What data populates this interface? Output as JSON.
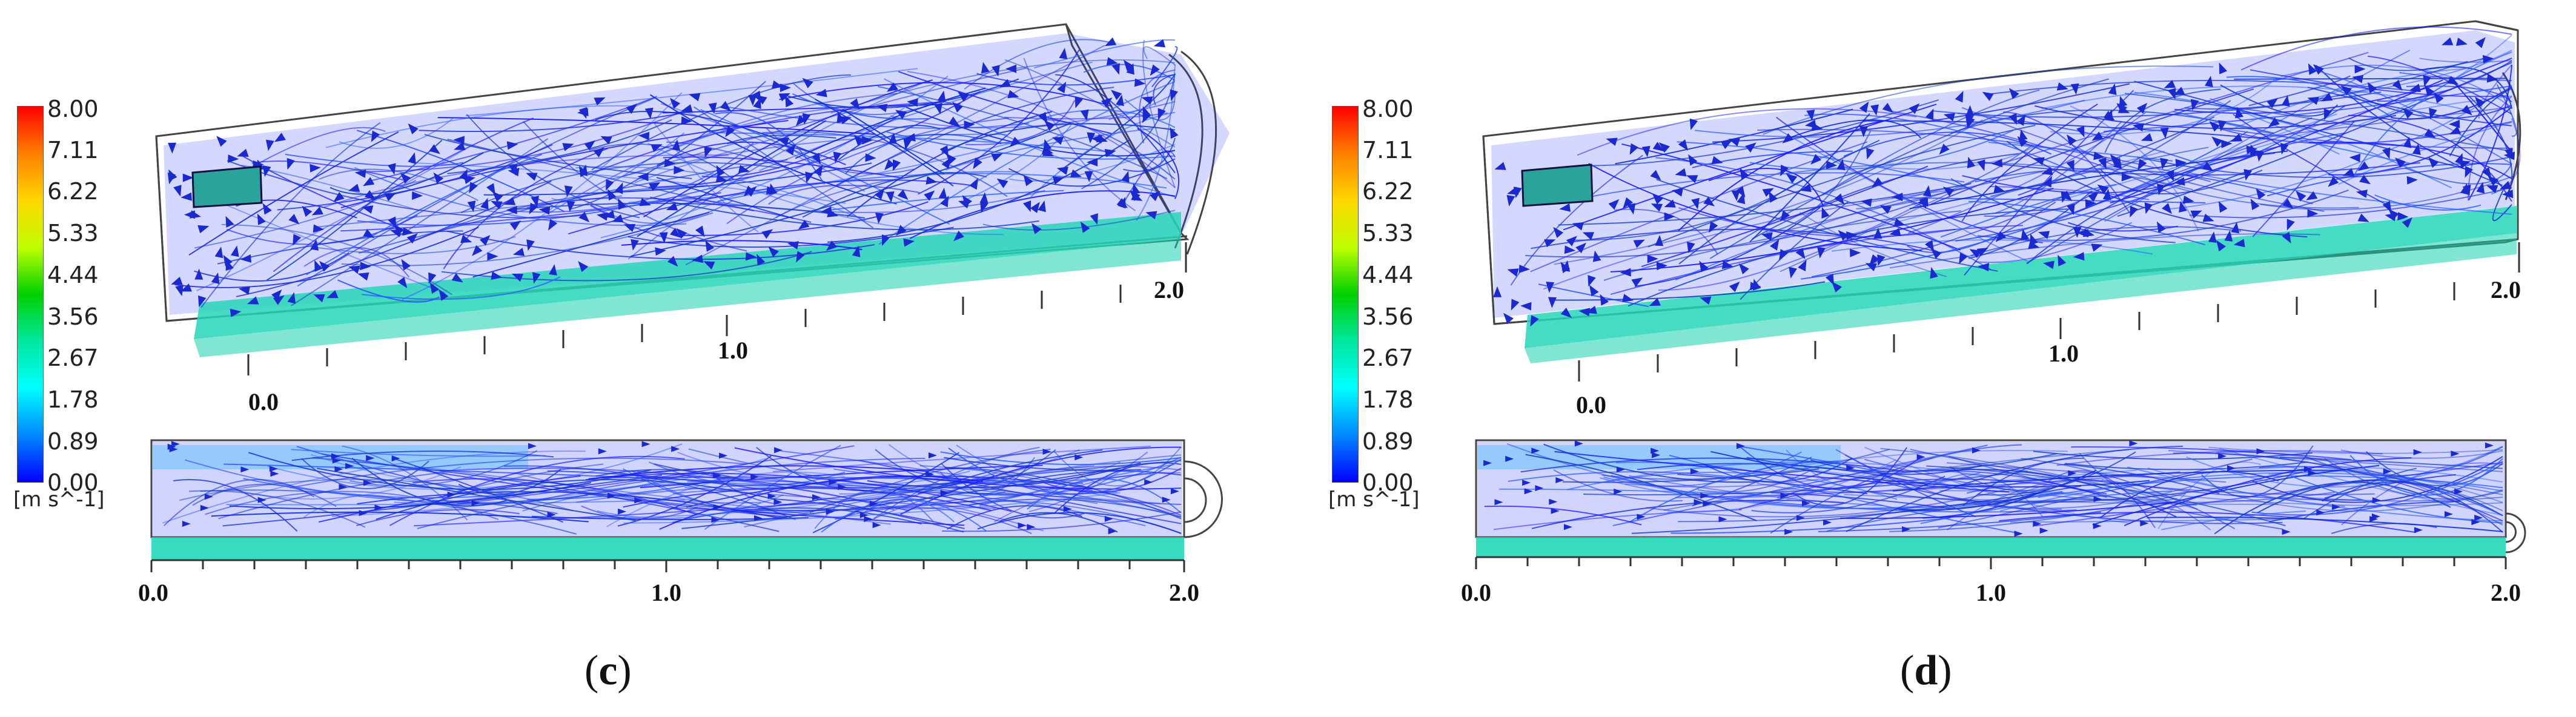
{
  "colorbar": {
    "ticks": [
      "8.00",
      "7.11",
      "6.22",
      "5.33",
      "4.44",
      "3.56",
      "2.67",
      "1.78",
      "0.89",
      "0.00"
    ],
    "unit": "[m s^-1]"
  },
  "panels": [
    {
      "id": "c",
      "caption_open": "(",
      "caption_letter": "c",
      "caption_close": ")",
      "iso_axis_ticks": [
        "0.0",
        "1.0",
        "2.0"
      ],
      "side_axis_ticks": [
        "0.0",
        "1.0",
        "2.0"
      ]
    },
    {
      "id": "d",
      "caption_open": "(",
      "caption_letter": "d",
      "caption_close": ")",
      "iso_axis_ticks": [
        "0.0",
        "1.0",
        "2.0"
      ],
      "side_axis_ticks": [
        "0.0",
        "1.0",
        "2.0"
      ]
    }
  ],
  "colors": {
    "low": "#0000ff",
    "mid": "#00e8c0",
    "high": "#ff0000",
    "inlet": "#2aa39a"
  }
}
